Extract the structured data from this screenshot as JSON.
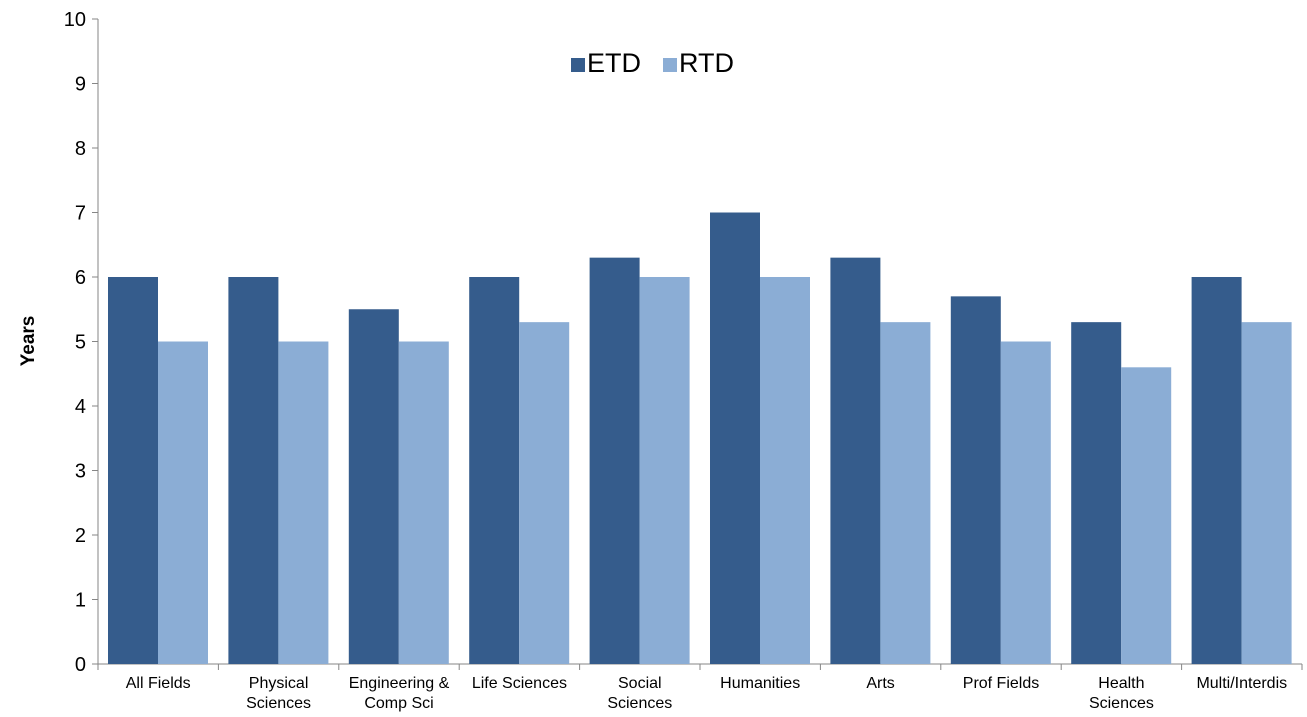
{
  "chart_data": {
    "type": "bar",
    "title": "",
    "xlabel": "",
    "ylabel": "Years",
    "ylim": [
      0,
      10
    ],
    "yticks": [
      "0",
      "1",
      "2",
      "3",
      "4",
      "5",
      "6",
      "7",
      "8",
      "9",
      "10"
    ],
    "grid": false,
    "legend_position": "top-center",
    "categories": [
      [
        "All Fields"
      ],
      [
        "Physical",
        "Sciences"
      ],
      [
        "Engineering &",
        "Comp Sci"
      ],
      [
        "Life Sciences"
      ],
      [
        "Social",
        "Sciences"
      ],
      [
        "Humanities"
      ],
      [
        "Arts"
      ],
      [
        "Prof Fields"
      ],
      [
        "Health",
        "Sciences"
      ],
      [
        "Multi/Interdis"
      ]
    ],
    "series": [
      {
        "name": "ETD",
        "color": "#355C8C",
        "values": [
          6.0,
          6.0,
          5.5,
          6.0,
          6.3,
          7.0,
          6.3,
          5.7,
          5.3,
          6.0
        ]
      },
      {
        "name": "RTD",
        "color": "#8BADD5",
        "values": [
          5.0,
          5.0,
          5.0,
          5.3,
          6.0,
          6.0,
          5.3,
          5.0,
          4.6,
          5.3
        ]
      }
    ]
  }
}
